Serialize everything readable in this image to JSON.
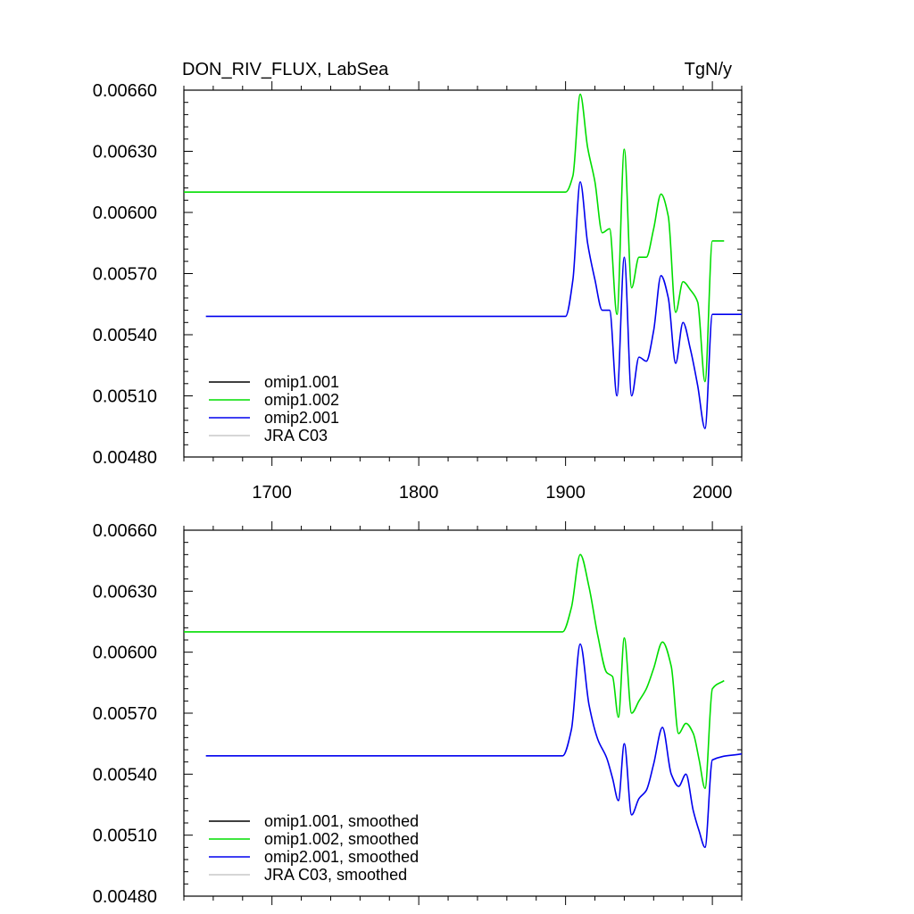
{
  "figure": {
    "title_left": "DON_RIV_FLUX, LabSea",
    "title_right": "TgN/y"
  },
  "chart_data": [
    {
      "type": "line",
      "title": "DON_RIV_FLUX, LabSea",
      "units": "TgN/y",
      "xlim": [
        1640,
        2020
      ],
      "ylim": [
        0.0048,
        0.0066
      ],
      "x_ticks": [
        1700,
        1800,
        1900,
        2000
      ],
      "x_tick_labels": [
        "1700",
        "1800",
        "1900",
        "2000"
      ],
      "y_ticks": [
        0.0048,
        0.0051,
        0.0054,
        0.0057,
        0.006,
        0.0063,
        0.0066
      ],
      "y_tick_labels": [
        "0.00480",
        "0.00510",
        "0.00540",
        "0.00570",
        "0.00600",
        "0.00630",
        "0.00660"
      ],
      "grid": false,
      "legend_position": "bottom-left",
      "series": [
        {
          "name": "omip1.001",
          "color": "#000000",
          "x": [],
          "y": []
        },
        {
          "name": "omip1.002",
          "color": "#00dd00",
          "x": [
            1640,
            1900,
            1905,
            1910,
            1915,
            1920,
            1925,
            1930,
            1935,
            1940,
            1945,
            1950,
            1955,
            1960,
            1965,
            1970,
            1975,
            1980,
            1985,
            1990,
            1995,
            2000,
            2008
          ],
          "y": [
            0.0061,
            0.0061,
            0.00618,
            0.00658,
            0.00632,
            0.00615,
            0.0059,
            0.00592,
            0.0055,
            0.00631,
            0.00563,
            0.00578,
            0.00578,
            0.00592,
            0.00609,
            0.00598,
            0.00551,
            0.00566,
            0.00562,
            0.00556,
            0.00517,
            0.00586,
            0.00586
          ]
        },
        {
          "name": "omip2.001",
          "color": "#0000ee",
          "x": [
            1655,
            1900,
            1905,
            1910,
            1915,
            1920,
            1925,
            1930,
            1935,
            1940,
            1945,
            1950,
            1955,
            1960,
            1965,
            1970,
            1975,
            1980,
            1985,
            1990,
            1995,
            2000,
            2020
          ],
          "y": [
            0.00549,
            0.00549,
            0.00567,
            0.00615,
            0.00585,
            0.00567,
            0.00552,
            0.00552,
            0.0051,
            0.00578,
            0.0051,
            0.00529,
            0.00527,
            0.00542,
            0.00569,
            0.00558,
            0.00526,
            0.00546,
            0.00533,
            0.00515,
            0.00494,
            0.0055,
            0.0055
          ]
        },
        {
          "name": "JRA C03",
          "color": "#c8c8c8",
          "x": [],
          "y": []
        }
      ]
    },
    {
      "type": "line",
      "xlim": [
        1640,
        2020
      ],
      "ylim": [
        0.0048,
        0.0066
      ],
      "x_ticks": [
        1700,
        1800,
        1900,
        2000
      ],
      "y_ticks": [
        0.0048,
        0.0051,
        0.0054,
        0.0057,
        0.006,
        0.0063,
        0.0066
      ],
      "y_tick_labels": [
        "0.00480",
        "0.00510",
        "0.00540",
        "0.00570",
        "0.00600",
        "0.00630",
        "0.00660"
      ],
      "grid": false,
      "legend_position": "bottom-left",
      "series": [
        {
          "name": "omip1.001, smoothed",
          "color": "#000000",
          "x": [],
          "y": []
        },
        {
          "name": "omip1.002, smoothed",
          "color": "#00dd00",
          "x": [
            1640,
            1898,
            1904,
            1910,
            1916,
            1922,
            1928,
            1932,
            1936,
            1940,
            1945,
            1950,
            1955,
            1960,
            1966,
            1972,
            1977,
            1982,
            1987,
            1991,
            1995,
            2000,
            2008
          ],
          "y": [
            0.0061,
            0.0061,
            0.00622,
            0.00648,
            0.00632,
            0.00608,
            0.0059,
            0.00588,
            0.00568,
            0.00607,
            0.0057,
            0.00576,
            0.00582,
            0.00592,
            0.00605,
            0.00593,
            0.0056,
            0.00565,
            0.0056,
            0.00547,
            0.00533,
            0.00582,
            0.00586
          ]
        },
        {
          "name": "omip2.001, smoothed",
          "color": "#0000ee",
          "x": [
            1655,
            1898,
            1904,
            1910,
            1916,
            1922,
            1928,
            1932,
            1936,
            1940,
            1945,
            1950,
            1955,
            1960,
            1966,
            1972,
            1977,
            1982,
            1987,
            1991,
            1995,
            2000,
            2020
          ],
          "y": [
            0.00549,
            0.00549,
            0.00562,
            0.00604,
            0.00574,
            0.00557,
            0.00548,
            0.00538,
            0.00527,
            0.00555,
            0.0052,
            0.00528,
            0.00532,
            0.00545,
            0.00563,
            0.0054,
            0.00534,
            0.0054,
            0.00522,
            0.00512,
            0.00504,
            0.00547,
            0.0055
          ]
        },
        {
          "name": "JRA C03, smoothed",
          "color": "#c8c8c8",
          "x": [],
          "y": []
        }
      ]
    }
  ]
}
